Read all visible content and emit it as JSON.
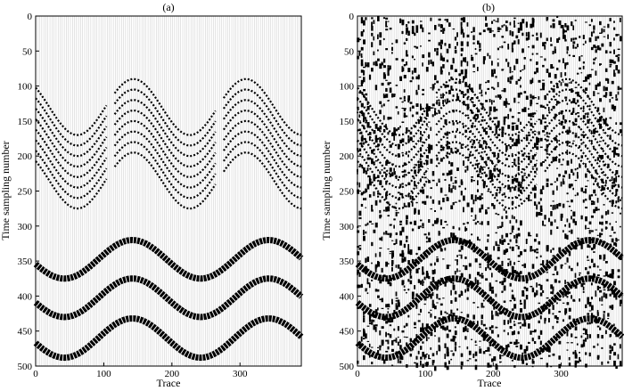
{
  "figure": {
    "panels": [
      "(a)",
      "(b)"
    ]
  },
  "chart_data": [
    {
      "type": "seismic-wiggle",
      "title": "(a)",
      "xlabel": "Trace",
      "ylabel": "Time sampling number",
      "xlim": [
        0,
        390
      ],
      "ylim": [
        500,
        0
      ],
      "y_inverted": true,
      "xticks": [
        0,
        100,
        200,
        300
      ],
      "yticks": [
        0,
        50,
        100,
        150,
        200,
        250,
        300,
        350,
        400,
        450,
        500
      ],
      "trace_count": 390,
      "noise": "none",
      "events": {
        "gap_traces": [
          110,
          270
        ],
        "upper_group": {
          "amplitude": 40,
          "center": 215,
          "period": 165,
          "count": 8,
          "first_trace": 0,
          "last_trace": 390,
          "first_top_times": [
            110,
            125,
            140,
            155,
            170,
            185,
            200,
            215
          ]
        },
        "lower_group": {
          "amplitude": 25,
          "period": 200,
          "center": 142,
          "times_at_crest": [
            320,
            375,
            432
          ],
          "times_at_trough": [
            375,
            430,
            488
          ]
        }
      },
      "grid": false,
      "legend": "none"
    },
    {
      "type": "seismic-wiggle",
      "title": "(b)",
      "xlabel": "Trace",
      "ylabel": "Time sampling number",
      "xlim": [
        0,
        390
      ],
      "ylim": [
        500,
        0
      ],
      "y_inverted": true,
      "xticks": [
        0,
        100,
        200,
        300
      ],
      "yticks": [
        0,
        50,
        100,
        150,
        200,
        250,
        300,
        350,
        400,
        450,
        500
      ],
      "trace_count": 390,
      "noise": "random",
      "grid": false,
      "legend": "none"
    }
  ]
}
